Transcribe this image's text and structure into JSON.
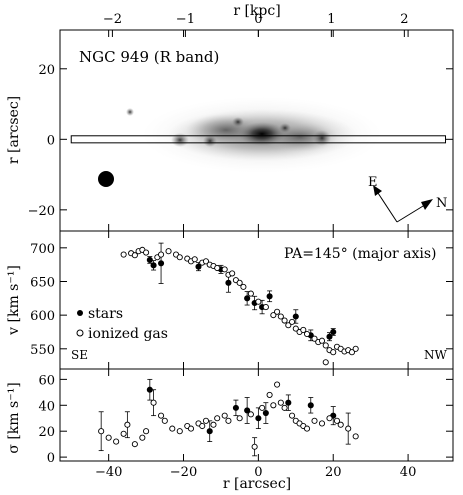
{
  "top_axis": {
    "label": "r [kpc]",
    "ticks": [
      {
        "label": "−2",
        "arcsec": -39
      },
      {
        "label": "−1",
        "arcsec": -19.5
      },
      {
        "label": "0",
        "arcsec": 0
      },
      {
        "label": "1",
        "arcsec": 19.5
      },
      {
        "label": "2",
        "arcsec": 39
      }
    ]
  },
  "x_axis": {
    "label": "r [arcsec]",
    "range": [
      -53,
      52
    ],
    "ticks": [
      {
        "label": "−40",
        "value": -40
      },
      {
        "label": "−20",
        "value": -20
      },
      {
        "label": "0",
        "value": 0
      },
      {
        "label": "20",
        "value": 20
      },
      {
        "label": "40",
        "value": 40
      }
    ]
  },
  "image_panel": {
    "title": "NGC 949 (R band)",
    "ylabel": "r [arcsec]",
    "yrange": [
      -26,
      31
    ],
    "yticks": [
      {
        "label": "20",
        "value": 20
      },
      {
        "label": "0",
        "value": 0
      },
      {
        "label": "−20",
        "value": -20
      }
    ],
    "slit": {
      "x_from": -50,
      "x_to": 50,
      "y_center": 0,
      "half_width": 1
    },
    "compass": {
      "east": "E",
      "north": "N"
    }
  },
  "chart_data": [
    {
      "type": "scatter",
      "panel": "velocity",
      "title": "",
      "annotation": "PA=145° (major axis)",
      "left_corner": "SE",
      "right_corner": "NW",
      "xlabel": "r [arcsec]",
      "ylabel": "v [km s⁻¹]",
      "ylim": [
        520,
        725
      ],
      "yticks": [
        {
          "label": "700",
          "value": 700
        },
        {
          "label": "650",
          "value": 650
        },
        {
          "label": "600",
          "value": 600
        },
        {
          "label": "550",
          "value": 550
        }
      ],
      "legend": [
        "stars",
        "ionized gas"
      ],
      "series": [
        {
          "name": "stars",
          "marker": "filled",
          "points": [
            {
              "x": -29,
              "y": 682,
              "err": 5
            },
            {
              "x": -28,
              "y": 674,
              "err": 7
            },
            {
              "x": -26,
              "y": 677,
              "err": 30
            },
            {
              "x": -16,
              "y": 672,
              "err": 6
            },
            {
              "x": -10,
              "y": 668,
              "err": 6
            },
            {
              "x": -8,
              "y": 648,
              "err": 14
            },
            {
              "x": -3,
              "y": 625,
              "err": 10
            },
            {
              "x": -1,
              "y": 618,
              "err": 10
            },
            {
              "x": 1,
              "y": 612,
              "err": 10
            },
            {
              "x": 3,
              "y": 628,
              "err": 8
            },
            {
              "x": 10,
              "y": 598,
              "err": 10
            },
            {
              "x": 14,
              "y": 570,
              "err": 8
            },
            {
              "x": 19,
              "y": 568,
              "err": 6
            },
            {
              "x": 20,
              "y": 575,
              "err": 5
            }
          ]
        },
        {
          "name": "ionized gas",
          "marker": "open",
          "points": [
            {
              "x": -36,
              "y": 690
            },
            {
              "x": -34,
              "y": 692
            },
            {
              "x": -33,
              "y": 689
            },
            {
              "x": -32,
              "y": 695
            },
            {
              "x": -31,
              "y": 697
            },
            {
              "x": -30,
              "y": 693
            },
            {
              "x": -27,
              "y": 686
            },
            {
              "x": -26,
              "y": 690
            },
            {
              "x": -24,
              "y": 695
            },
            {
              "x": -22,
              "y": 690
            },
            {
              "x": -21,
              "y": 686
            },
            {
              "x": -19,
              "y": 684
            },
            {
              "x": -18,
              "y": 680
            },
            {
              "x": -17,
              "y": 683
            },
            {
              "x": -15,
              "y": 678
            },
            {
              "x": -14,
              "y": 680
            },
            {
              "x": -13,
              "y": 675
            },
            {
              "x": -12,
              "y": 673
            },
            {
              "x": -11,
              "y": 670
            },
            {
              "x": -9,
              "y": 668
            },
            {
              "x": -8,
              "y": 660
            },
            {
              "x": -7,
              "y": 662
            },
            {
              "x": -6,
              "y": 652
            },
            {
              "x": -5,
              "y": 648
            },
            {
              "x": -4,
              "y": 642
            },
            {
              "x": -2,
              "y": 632
            },
            {
              "x": 0,
              "y": 620
            },
            {
              "x": 2,
              "y": 612
            },
            {
              "x": 4,
              "y": 600
            },
            {
              "x": 5,
              "y": 605
            },
            {
              "x": 6,
              "y": 598
            },
            {
              "x": 7,
              "y": 592
            },
            {
              "x": 8,
              "y": 585
            },
            {
              "x": 9,
              "y": 590
            },
            {
              "x": 10,
              "y": 580
            },
            {
              "x": 11,
              "y": 575
            },
            {
              "x": 12,
              "y": 578
            },
            {
              "x": 13,
              "y": 572
            },
            {
              "x": 15,
              "y": 565
            },
            {
              "x": 16,
              "y": 560
            },
            {
              "x": 17,
              "y": 562
            },
            {
              "x": 18,
              "y": 555
            },
            {
              "x": 19,
              "y": 548
            },
            {
              "x": 20,
              "y": 545
            },
            {
              "x": 21,
              "y": 553
            },
            {
              "x": 22,
              "y": 550
            },
            {
              "x": 23,
              "y": 546
            },
            {
              "x": 24,
              "y": 548
            },
            {
              "x": 25,
              "y": 545
            },
            {
              "x": 26,
              "y": 550
            },
            {
              "x": 18,
              "y": 530
            }
          ]
        }
      ]
    },
    {
      "type": "scatter",
      "panel": "dispersion",
      "title": "",
      "xlabel": "r [arcsec]",
      "ylabel": "σ [km s⁻¹]",
      "ylim": [
        -3,
        68
      ],
      "yticks": [
        {
          "label": "60",
          "value": 60
        },
        {
          "label": "40",
          "value": 40
        },
        {
          "label": "20",
          "value": 20
        },
        {
          "label": "0",
          "value": 0
        }
      ],
      "series": [
        {
          "name": "stars",
          "marker": "filled",
          "points": [
            {
              "x": -29,
              "y": 52,
              "err": 8
            },
            {
              "x": -13,
              "y": 20,
              "err": 8
            },
            {
              "x": -6,
              "y": 38,
              "err": 6
            },
            {
              "x": -3,
              "y": 36,
              "err": 10
            },
            {
              "x": 0,
              "y": 30,
              "err": 8
            },
            {
              "x": 2,
              "y": 34,
              "err": 8
            },
            {
              "x": 8,
              "y": 42,
              "err": 6
            },
            {
              "x": 14,
              "y": 40,
              "err": 6
            },
            {
              "x": 20,
              "y": 32,
              "err": 7
            }
          ]
        },
        {
          "name": "ionized gas",
          "marker": "open",
          "points": [
            {
              "x": -42,
              "y": 20,
              "err": 15
            },
            {
              "x": -40,
              "y": 15
            },
            {
              "x": -38,
              "y": 12
            },
            {
              "x": -36,
              "y": 18
            },
            {
              "x": -35,
              "y": 25,
              "err": 10
            },
            {
              "x": -33,
              "y": 10
            },
            {
              "x": -31,
              "y": 15
            },
            {
              "x": -30,
              "y": 20
            },
            {
              "x": -28,
              "y": 42,
              "err": 10
            },
            {
              "x": -26,
              "y": 32
            },
            {
              "x": -25,
              "y": 28
            },
            {
              "x": -23,
              "y": 22
            },
            {
              "x": -21,
              "y": 20
            },
            {
              "x": -19,
              "y": 24
            },
            {
              "x": -18,
              "y": 22
            },
            {
              "x": -16,
              "y": 26
            },
            {
              "x": -15,
              "y": 24
            },
            {
              "x": -14,
              "y": 28
            },
            {
              "x": -12,
              "y": 25
            },
            {
              "x": -11,
              "y": 30
            },
            {
              "x": -9,
              "y": 32
            },
            {
              "x": -8,
              "y": 28
            },
            {
              "x": -5,
              "y": 30
            },
            {
              "x": -2,
              "y": 33
            },
            {
              "x": -1,
              "y": 8,
              "err": 7
            },
            {
              "x": 1,
              "y": 38
            },
            {
              "x": 3,
              "y": 48
            },
            {
              "x": 4,
              "y": 40
            },
            {
              "x": 5,
              "y": 56
            },
            {
              "x": 6,
              "y": 42
            },
            {
              "x": 7,
              "y": 38
            },
            {
              "x": 9,
              "y": 32
            },
            {
              "x": 10,
              "y": 28
            },
            {
              "x": 11,
              "y": 26
            },
            {
              "x": 12,
              "y": 24
            },
            {
              "x": 13,
              "y": 22
            },
            {
              "x": 15,
              "y": 28
            },
            {
              "x": 17,
              "y": 26
            },
            {
              "x": 19,
              "y": 30
            },
            {
              "x": 21,
              "y": 28
            },
            {
              "x": 22,
              "y": 25
            },
            {
              "x": 24,
              "y": 22,
              "err": 12
            },
            {
              "x": 26,
              "y": 16
            }
          ]
        }
      ]
    }
  ]
}
